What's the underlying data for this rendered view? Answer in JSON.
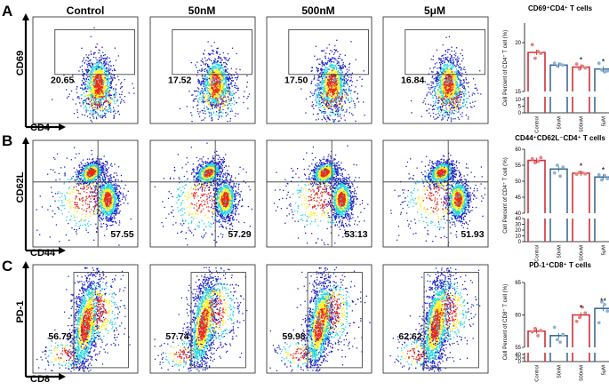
{
  "chart_data": {
    "type": "figure",
    "column_headers": [
      "Control",
      "50nM",
      "500nM",
      "5μM"
    ],
    "rows": [
      {
        "panel_label": "A",
        "flow_type": "single_gate",
        "y_marker": "CD69",
        "x_marker": "CD4",
        "gate_percentages": [
          "20.65",
          "17.52",
          "17.50",
          "16.84"
        ],
        "bar_chart": {
          "type": "bar",
          "title": "CD69⁺CD4⁺ T cells",
          "ylabel": "Cell Percent of CD4⁺ T cell (%)",
          "categories": [
            "Control",
            "50nM",
            "500nM",
            "5μM"
          ],
          "values": [
            19.0,
            17.7,
            17.5,
            17.3
          ],
          "points": [
            [
              19.8,
              18.4,
              19.1,
              18.9
            ],
            [
              17.9,
              17.6,
              17.8,
              17.7
            ],
            [
              17.8,
              17.3,
              17.6,
              17.4
            ],
            [
              17.9,
              17.2,
              17.0,
              17.1
            ]
          ],
          "significance": [
            "",
            "",
            "*",
            "*"
          ],
          "broken_axis": true,
          "upper_ticks": [
            "15",
            "20"
          ],
          "lower_ticks": [
            "0",
            "5",
            "10"
          ],
          "upper_range": [
            15,
            22
          ],
          "lower_range": [
            0,
            12
          ]
        }
      },
      {
        "panel_label": "B",
        "flow_type": "quadrant",
        "y_marker": "CD62L",
        "x_marker": "CD44",
        "gate_percentages": [
          "57.55",
          "57.29",
          "53.13",
          "51.93"
        ],
        "bar_chart": {
          "type": "bar",
          "title": "CD44⁺CD62L⁻CD4⁺ T cells",
          "ylabel": "Cell Percent of CD4⁺ T cell (%)",
          "categories": [
            "Control",
            "50nM",
            "500nM",
            "5μM"
          ],
          "values": [
            56.5,
            53.8,
            52.5,
            51.3
          ],
          "points": [
            [
              57.0,
              55.8,
              56.2,
              57.4
            ],
            [
              52.6,
              55.0,
              51.6,
              54.4
            ],
            [
              52.2,
              52.8,
              52.6,
              52.3
            ],
            [
              52.0,
              50.4,
              51.8,
              50.8
            ]
          ],
          "significance": [
            "",
            "",
            "*",
            "*"
          ],
          "broken_axis": true,
          "upper_ticks": [
            "40",
            "45",
            "50",
            "55",
            "60"
          ],
          "lower_ticks": [
            "0",
            "10",
            "20",
            "30",
            "40"
          ],
          "upper_range": [
            40,
            60
          ],
          "lower_range": [
            0,
            40
          ]
        }
      },
      {
        "panel_label": "C",
        "flow_type": "single_gate",
        "y_marker": "PD-1",
        "x_marker": "CD8",
        "gate_percentages": [
          "56.79",
          "57.74",
          "59.98",
          "62.62"
        ],
        "bar_chart": {
          "type": "bar",
          "title": "PD-1⁺CD8⁺ T cells",
          "ylabel": "Cell Percent of CD8⁺ T cell (%)",
          "categories": [
            "Control",
            "50nM",
            "500nM",
            "5μM"
          ],
          "values": [
            57.5,
            56.8,
            60.0,
            61.0
          ],
          "points": [
            [
              57.4,
              57.9,
              56.8,
              57.6
            ],
            [
              58.1,
              56.2,
              55.8,
              57.0
            ],
            [
              59.0,
              59.6,
              61.2,
              60.3
            ],
            [
              58.8,
              62.0,
              61.6,
              60.6
            ]
          ],
          "significance": [
            "",
            "",
            "*",
            "**"
          ],
          "broken_axis": true,
          "upper_ticks": [
            "55",
            "60",
            "65"
          ],
          "lower_ticks": [
            "0",
            "20",
            "40"
          ],
          "upper_range": [
            55,
            65
          ],
          "lower_range": [
            0,
            50
          ]
        }
      }
    ],
    "colors": {
      "control_bar": "#d42e36",
      "control_points": "#e8807f",
      "treat_bar": "#3c6e96",
      "treat_points": "#8fb1d3",
      "high_dose_bar": "#d42e36",
      "high_dose_points": "#e98282",
      "density_low": "#1d22c8",
      "density_mid": "#21d6e0",
      "density_high": "#ffef18",
      "density_peak": "#e92a1a"
    }
  }
}
